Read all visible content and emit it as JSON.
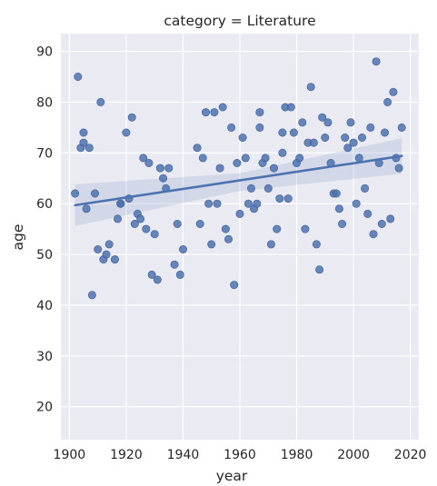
{
  "chart_data": {
    "type": "scatter",
    "title": "category = Literature",
    "xlabel": "year",
    "ylabel": "age",
    "xlim": [
      1897,
      2023
    ],
    "ylim": [
      13.5,
      93.5
    ],
    "xticks": [
      1900,
      1920,
      1940,
      1960,
      1980,
      2000,
      2020
    ],
    "yticks": [
      20,
      30,
      40,
      50,
      60,
      70,
      80,
      90
    ],
    "grid": true,
    "colors": {
      "background": "#eaeaf2",
      "grid": "#ffffff",
      "points": "#4c72b0",
      "line": "#4c72b0",
      "band": "#4c72b0"
    },
    "points": [
      [
        1902,
        62
      ],
      [
        1903,
        85
      ],
      [
        1904,
        71
      ],
      [
        1905,
        74
      ],
      [
        1905,
        72
      ],
      [
        1906,
        59
      ],
      [
        1907,
        71
      ],
      [
        1908,
        42
      ],
      [
        1909,
        62
      ],
      [
        1910,
        51
      ],
      [
        1911,
        80
      ],
      [
        1912,
        49
      ],
      [
        1913,
        50
      ],
      [
        1914,
        52
      ],
      [
        1916,
        49
      ],
      [
        1917,
        57
      ],
      [
        1918,
        60
      ],
      [
        1918,
        60
      ],
      [
        1920,
        74
      ],
      [
        1921,
        61
      ],
      [
        1922,
        77
      ],
      [
        1923,
        56
      ],
      [
        1924,
        58
      ],
      [
        1925,
        57
      ],
      [
        1926,
        69
      ],
      [
        1927,
        55
      ],
      [
        1928,
        68
      ],
      [
        1929,
        46
      ],
      [
        1930,
        54
      ],
      [
        1931,
        45
      ],
      [
        1932,
        67
      ],
      [
        1933,
        65
      ],
      [
        1934,
        63
      ],
      [
        1935,
        67
      ],
      [
        1937,
        48
      ],
      [
        1938,
        56
      ],
      [
        1939,
        46
      ],
      [
        1940,
        51
      ],
      [
        1945,
        71
      ],
      [
        1946,
        56
      ],
      [
        1947,
        69
      ],
      [
        1948,
        78
      ],
      [
        1949,
        60
      ],
      [
        1950,
        52
      ],
      [
        1951,
        78
      ],
      [
        1952,
        60
      ],
      [
        1953,
        67
      ],
      [
        1954,
        79
      ],
      [
        1955,
        55
      ],
      [
        1956,
        53
      ],
      [
        1957,
        75
      ],
      [
        1958,
        44
      ],
      [
        1959,
        68
      ],
      [
        1960,
        58
      ],
      [
        1961,
        73
      ],
      [
        1962,
        69
      ],
      [
        1963,
        60
      ],
      [
        1964,
        63
      ],
      [
        1965,
        59
      ],
      [
        1966,
        60
      ],
      [
        1967,
        78
      ],
      [
        1967,
        75
      ],
      [
        1968,
        68
      ],
      [
        1969,
        69
      ],
      [
        1970,
        63
      ],
      [
        1971,
        52
      ],
      [
        1972,
        67
      ],
      [
        1973,
        55
      ],
      [
        1974,
        61
      ],
      [
        1975,
        74
      ],
      [
        1975,
        70
      ],
      [
        1976,
        79
      ],
      [
        1977,
        61
      ],
      [
        1978,
        79
      ],
      [
        1979,
        74
      ],
      [
        1980,
        68
      ],
      [
        1981,
        69
      ],
      [
        1982,
        76
      ],
      [
        1983,
        55
      ],
      [
        1984,
        72
      ],
      [
        1985,
        83
      ],
      [
        1986,
        72
      ],
      [
        1987,
        52
      ],
      [
        1988,
        47
      ],
      [
        1989,
        77
      ],
      [
        1990,
        73
      ],
      [
        1991,
        76
      ],
      [
        1992,
        68
      ],
      [
        1993,
        62
      ],
      [
        1994,
        62
      ],
      [
        1995,
        59
      ],
      [
        1996,
        56
      ],
      [
        1997,
        73
      ],
      [
        1998,
        71
      ],
      [
        1999,
        76
      ],
      [
        2000,
        72
      ],
      [
        2001,
        60
      ],
      [
        2002,
        69
      ],
      [
        2003,
        73
      ],
      [
        2004,
        63
      ],
      [
        2005,
        58
      ],
      [
        2006,
        75
      ],
      [
        2007,
        54
      ],
      [
        2008,
        88
      ],
      [
        2009,
        68
      ],
      [
        2010,
        56
      ],
      [
        2011,
        74
      ],
      [
        2012,
        80
      ],
      [
        2013,
        57
      ],
      [
        2014,
        82
      ],
      [
        2015,
        69
      ],
      [
        2016,
        67
      ],
      [
        2017,
        75
      ]
    ],
    "regression": {
      "x": [
        1902,
        2017
      ],
      "y": [
        59.7,
        69.4
      ]
    },
    "ci_band": {
      "x": [
        1902,
        1960,
        2017
      ],
      "upper": [
        63.8,
        66.0,
        72.9
      ],
      "lower": [
        55.6,
        62.5,
        65.9
      ]
    }
  }
}
